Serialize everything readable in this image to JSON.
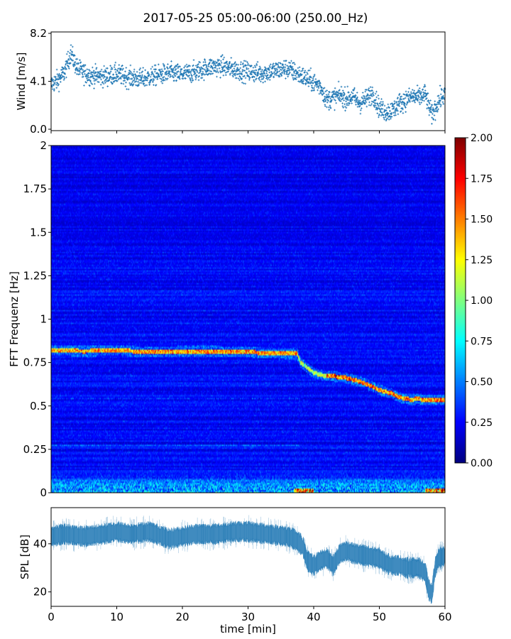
{
  "title": "2017-05-25 05:00-06:00 (250.00_Hz)",
  "chart_data": [
    {
      "type": "scatter",
      "panel": "wind",
      "ylabel": "Wind [m/s]",
      "xlim": [
        0,
        60
      ],
      "ylim": [
        0.0,
        8.2
      ],
      "yticks": [
        "0.0",
        "4.1",
        "8.2"
      ],
      "color": "#1f77b4",
      "marker": "+",
      "trend": {
        "x": [
          0,
          1,
          2,
          3,
          4,
          5,
          6,
          8,
          10,
          12,
          14,
          16,
          18,
          20,
          22,
          24,
          26,
          28,
          30,
          32,
          34,
          36,
          38,
          40,
          41,
          42,
          43,
          44,
          45,
          46,
          47,
          48,
          49,
          50,
          51,
          52,
          53,
          54,
          55,
          56,
          57,
          58,
          59,
          60
        ],
        "y": [
          3.8,
          4.2,
          4.8,
          6.5,
          5.2,
          4.8,
          4.6,
          4.5,
          4.7,
          4.4,
          4.3,
          4.6,
          4.8,
          4.7,
          4.9,
          5.3,
          5.4,
          5.1,
          4.9,
          4.8,
          5.0,
          5.2,
          4.6,
          4.0,
          3.7,
          2.5,
          2.7,
          2.9,
          2.6,
          2.8,
          2.2,
          2.6,
          3.1,
          1.8,
          1.5,
          1.6,
          2.2,
          2.5,
          2.8,
          2.7,
          3.0,
          1.2,
          2.4,
          3.0
        ]
      },
      "spread": 0.6,
      "n_points": 2000
    },
    {
      "type": "heatmap",
      "panel": "spectrogram",
      "ylabel": "FFT Frequenz [Hz]",
      "xlim": [
        0,
        60
      ],
      "ylim": [
        0,
        2
      ],
      "yticks": [
        "0",
        "0.25",
        "0.5",
        "0.75",
        "1",
        "1.25",
        "1.5",
        "1.75",
        "2"
      ],
      "colormap": "jet",
      "colorbar": {
        "range": [
          0.0,
          2.0
        ],
        "ticks": [
          "0.00",
          "0.25",
          "0.50",
          "0.75",
          "1.00",
          "1.25",
          "1.50",
          "1.75",
          "2.00"
        ]
      },
      "ridge": {
        "x": [
          0,
          5,
          10,
          15,
          20,
          25,
          30,
          35,
          37.5,
          38,
          39,
          40,
          41,
          42,
          43,
          44,
          45,
          46,
          47,
          48,
          49,
          50,
          51,
          52,
          53,
          54,
          55,
          56,
          57,
          58
        ],
        "freq": [
          0.82,
          0.815,
          0.82,
          0.81,
          0.815,
          0.815,
          0.81,
          0.8,
          0.8,
          0.75,
          0.72,
          0.69,
          0.68,
          0.67,
          0.67,
          0.665,
          0.66,
          0.65,
          0.64,
          0.625,
          0.61,
          0.59,
          0.58,
          0.57,
          0.55,
          0.54,
          0.535,
          0.54,
          0.53,
          0.53
        ]
      },
      "secondary_lines": [
        0.27,
        0.54
      ]
    },
    {
      "type": "area",
      "panel": "spl",
      "ylabel": "SPL [dB]",
      "xlabel": "time [min]",
      "xlim": [
        0,
        60
      ],
      "ylim": [
        14,
        55
      ],
      "yticks": [
        "20",
        "40"
      ],
      "xticks": [
        "0",
        "10",
        "20",
        "30",
        "40",
        "50",
        "60"
      ],
      "color": "#1f77b4",
      "center": {
        "x": [
          0,
          2,
          5,
          8,
          10,
          12,
          15,
          18,
          20,
          22,
          25,
          28,
          30,
          33,
          36,
          37,
          38,
          38.5,
          39,
          40,
          41,
          42,
          43,
          44,
          45,
          46,
          48,
          50,
          51,
          52,
          53,
          54,
          55,
          56,
          57,
          57.5,
          58,
          58.5,
          59,
          60
        ],
        "y": [
          43,
          44,
          43,
          44,
          45,
          44,
          45,
          42,
          43,
          44,
          44,
          45,
          45,
          44,
          43,
          42,
          40,
          38,
          33,
          31,
          33,
          34,
          31,
          36,
          37,
          36,
          35,
          34,
          32,
          31,
          31,
          30,
          30,
          30,
          28,
          21,
          19,
          30,
          34,
          35
        ]
      },
      "band": 3.5
    }
  ]
}
